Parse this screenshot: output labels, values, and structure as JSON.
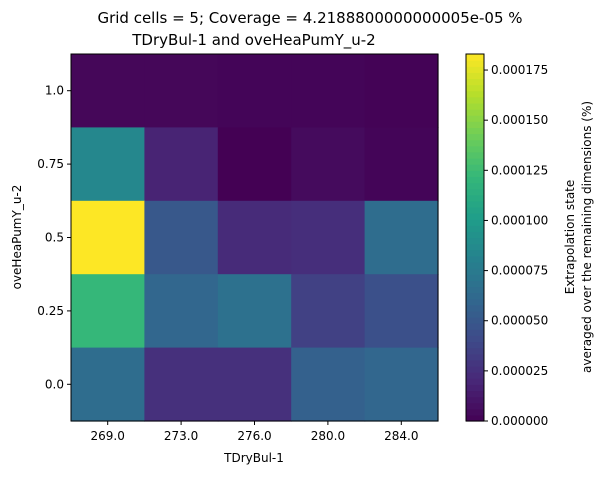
{
  "chart_data": {
    "type": "heatmap",
    "title_line1": "Grid cells = 5; Coverage = 4.2188800000000005e-05 %",
    "title_line2": "TDryBul-1 and oveHeaPumY_u-2",
    "xlabel": "TDryBul-1",
    "ylabel": "oveHeaPumY_u-2",
    "x_ticks": [
      "269.0",
      "273.0",
      "276.0",
      "280.0",
      "284.0"
    ],
    "y_ticks_top_to_bottom": [
      "1.0",
      "0.75",
      "0.5",
      "0.25",
      "0.0"
    ],
    "values_top_to_bottom": [
      [
        3e-06,
        3e-06,
        2e-06,
        2e-06,
        1e-06
      ],
      [
        8.5e-05,
        1.8e-05,
        0.0,
        5e-06,
        2e-06
      ],
      [
        0.000183,
        5e-05,
        2.2e-05,
        2.4e-05,
        6.5e-05
      ],
      [
        0.000122,
        6e-05,
        6.8e-05,
        3.5e-05,
        4.5e-05
      ],
      [
        6.5e-05,
        2.5e-05,
        2.5e-05,
        5.6e-05,
        6e-05
      ]
    ],
    "colorbar": {
      "min": 0.0,
      "max": 0.000183,
      "ticks": [
        "0.000000",
        "0.000025",
        "0.000050",
        "0.000075",
        "0.000100",
        "0.000125",
        "0.000150",
        "0.000175"
      ],
      "label_line1": "Extrapolation state",
      "label_line2": "averaged over the remaining dimensions (%)",
      "colormap": "viridis"
    }
  }
}
